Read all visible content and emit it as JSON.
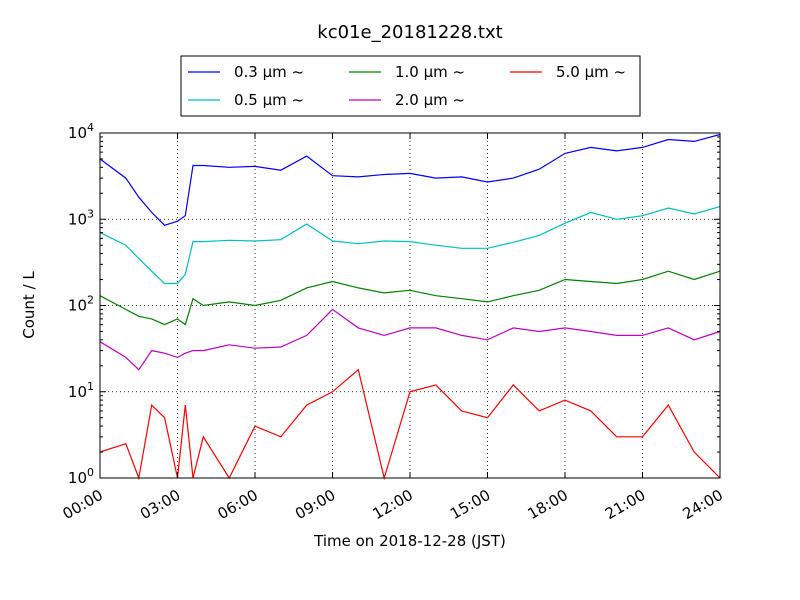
{
  "chart_data": {
    "type": "line",
    "title": "kc01e_20181228.txt",
    "xlabel": "Time on 2018-12-28 (JST)",
    "ylabel": "Count / L",
    "yscale": "log",
    "ylim": [
      1,
      10000
    ],
    "xlim": [
      "00:00",
      "24:00"
    ],
    "grid": "dotted",
    "legend": "top-center, outside, 3 columns",
    "x_ticks": [
      "00:00",
      "03:00",
      "06:00",
      "09:00",
      "12:00",
      "15:00",
      "18:00",
      "21:00",
      "24:00"
    ],
    "y_ticks": [
      {
        "value": 1,
        "base": "10",
        "exp": "0"
      },
      {
        "value": 10,
        "base": "10",
        "exp": "1"
      },
      {
        "value": 100,
        "base": "10",
        "exp": "2"
      },
      {
        "value": 1000,
        "base": "10",
        "exp": "3"
      },
      {
        "value": 10000,
        "base": "10",
        "exp": "4"
      }
    ],
    "series": [
      {
        "name": "0.3 μm ~",
        "color": "#0000ff",
        "points": [
          [
            0,
            5000
          ],
          [
            1,
            3000
          ],
          [
            1.5,
            1800
          ],
          [
            2,
            1200
          ],
          [
            2.5,
            850
          ],
          [
            3,
            950
          ],
          [
            3.3,
            1100
          ],
          [
            3.6,
            4200
          ],
          [
            4,
            4200
          ],
          [
            5,
            4000
          ],
          [
            6,
            4100
          ],
          [
            7,
            3700
          ],
          [
            8,
            5400
          ],
          [
            9,
            3200
          ],
          [
            10,
            3100
          ],
          [
            11,
            3300
          ],
          [
            12,
            3400
          ],
          [
            13,
            3000
          ],
          [
            14,
            3100
          ],
          [
            15,
            2700
          ],
          [
            16,
            3000
          ],
          [
            17,
            3800
          ],
          [
            18,
            5800
          ],
          [
            19,
            6800
          ],
          [
            20,
            6200
          ],
          [
            21,
            6800
          ],
          [
            22,
            8400
          ],
          [
            23,
            8000
          ],
          [
            24,
            9600
          ]
        ]
      },
      {
        "name": "0.5 μm ~",
        "color": "#00bfbf",
        "points": [
          [
            0,
            700
          ],
          [
            1,
            500
          ],
          [
            1.5,
            350
          ],
          [
            2,
            250
          ],
          [
            2.5,
            180
          ],
          [
            3,
            180
          ],
          [
            3.3,
            230
          ],
          [
            3.6,
            550
          ],
          [
            4,
            550
          ],
          [
            5,
            570
          ],
          [
            6,
            560
          ],
          [
            7,
            580
          ],
          [
            8,
            880
          ],
          [
            9,
            560
          ],
          [
            10,
            520
          ],
          [
            11,
            560
          ],
          [
            12,
            550
          ],
          [
            13,
            500
          ],
          [
            14,
            460
          ],
          [
            15,
            460
          ],
          [
            16,
            540
          ],
          [
            17,
            650
          ],
          [
            18,
            900
          ],
          [
            19,
            1200
          ],
          [
            20,
            1000
          ],
          [
            21,
            1100
          ],
          [
            22,
            1350
          ],
          [
            23,
            1150
          ],
          [
            24,
            1400
          ]
        ]
      },
      {
        "name": "1.0 μm ~",
        "color": "#008000",
        "points": [
          [
            0,
            130
          ],
          [
            1,
            90
          ],
          [
            1.5,
            75
          ],
          [
            2,
            70
          ],
          [
            2.5,
            60
          ],
          [
            3,
            70
          ],
          [
            3.3,
            60
          ],
          [
            3.6,
            120
          ],
          [
            4,
            100
          ],
          [
            5,
            110
          ],
          [
            6,
            100
          ],
          [
            7,
            115
          ],
          [
            8,
            160
          ],
          [
            9,
            190
          ],
          [
            10,
            160
          ],
          [
            11,
            140
          ],
          [
            12,
            150
          ],
          [
            13,
            130
          ],
          [
            14,
            120
          ],
          [
            15,
            110
          ],
          [
            16,
            130
          ],
          [
            17,
            150
          ],
          [
            18,
            200
          ],
          [
            19,
            190
          ],
          [
            20,
            180
          ],
          [
            21,
            200
          ],
          [
            22,
            250
          ],
          [
            23,
            200
          ],
          [
            24,
            250
          ]
        ]
      },
      {
        "name": "2.0 μm ~",
        "color": "#bf00bf",
        "points": [
          [
            0,
            38
          ],
          [
            1,
            25
          ],
          [
            1.5,
            18
          ],
          [
            2,
            30
          ],
          [
            2.5,
            28
          ],
          [
            3,
            25
          ],
          [
            3.3,
            28
          ],
          [
            3.6,
            30
          ],
          [
            4,
            30
          ],
          [
            5,
            35
          ],
          [
            6,
            32
          ],
          [
            7,
            33
          ],
          [
            8,
            45
          ],
          [
            9,
            90
          ],
          [
            10,
            55
          ],
          [
            11,
            45
          ],
          [
            12,
            55
          ],
          [
            13,
            55
          ],
          [
            14,
            45
          ],
          [
            15,
            40
          ],
          [
            16,
            55
          ],
          [
            17,
            50
          ],
          [
            18,
            55
          ],
          [
            19,
            50
          ],
          [
            20,
            45
          ],
          [
            21,
            45
          ],
          [
            22,
            55
          ],
          [
            23,
            40
          ],
          [
            24,
            50
          ]
        ]
      },
      {
        "name": "5.0 μm ~",
        "color": "#ff0000",
        "points": [
          [
            0,
            2
          ],
          [
            1,
            2.5
          ],
          [
            1.5,
            1
          ],
          [
            2,
            7
          ],
          [
            2.5,
            5
          ],
          [
            3,
            1
          ],
          [
            3.3,
            7
          ],
          [
            3.6,
            1
          ],
          [
            4,
            3
          ],
          [
            5,
            1
          ],
          [
            6,
            4
          ],
          [
            7,
            3
          ],
          [
            8,
            7
          ],
          [
            9,
            10
          ],
          [
            10,
            18
          ],
          [
            11,
            1
          ],
          [
            12,
            10
          ],
          [
            13,
            12
          ],
          [
            14,
            6
          ],
          [
            15,
            5
          ],
          [
            16,
            12
          ],
          [
            17,
            6
          ],
          [
            18,
            8
          ],
          [
            19,
            6
          ],
          [
            20,
            3
          ],
          [
            21,
            3
          ],
          [
            22,
            7
          ],
          [
            23,
            2
          ],
          [
            24,
            1
          ]
        ]
      }
    ]
  }
}
